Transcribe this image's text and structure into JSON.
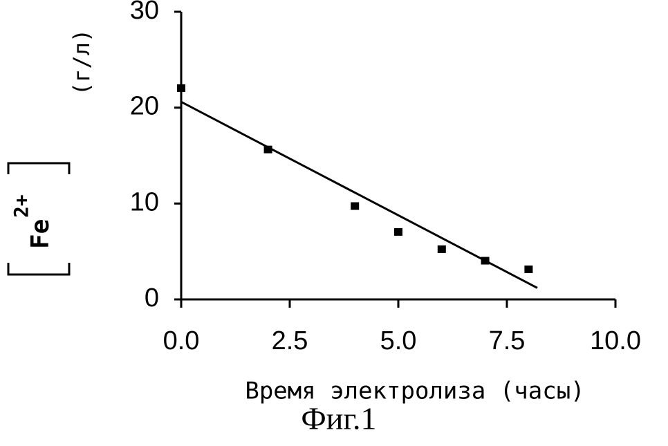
{
  "chart_data": {
    "type": "scatter",
    "xlabel": "Время электролиза (часы)",
    "ylabel": "Fe",
    "ylabel_sup": "2+",
    "ylabel_units": "(г/л)",
    "caption": "Фиг.1",
    "x": [
      0,
      2,
      4,
      5,
      6,
      7,
      8
    ],
    "values": [
      22,
      15.6,
      9.7,
      7,
      5.2,
      4,
      3.1
    ],
    "color": "#000000",
    "trendline": {
      "x": [
        0,
        8.2
      ],
      "y": [
        20.6,
        1.2
      ]
    },
    "xlim": [
      0,
      10
    ],
    "xticks": [
      {
        "value": 0,
        "label": "0.0"
      },
      {
        "value": 2.5,
        "label": "2.5"
      },
      {
        "value": 5,
        "label": "5.0"
      },
      {
        "value": 7.5,
        "label": "7.5"
      },
      {
        "value": 10,
        "label": "10.0"
      }
    ],
    "ylim": [
      0,
      30
    ],
    "yticks": [
      0,
      10,
      20,
      30
    ]
  }
}
